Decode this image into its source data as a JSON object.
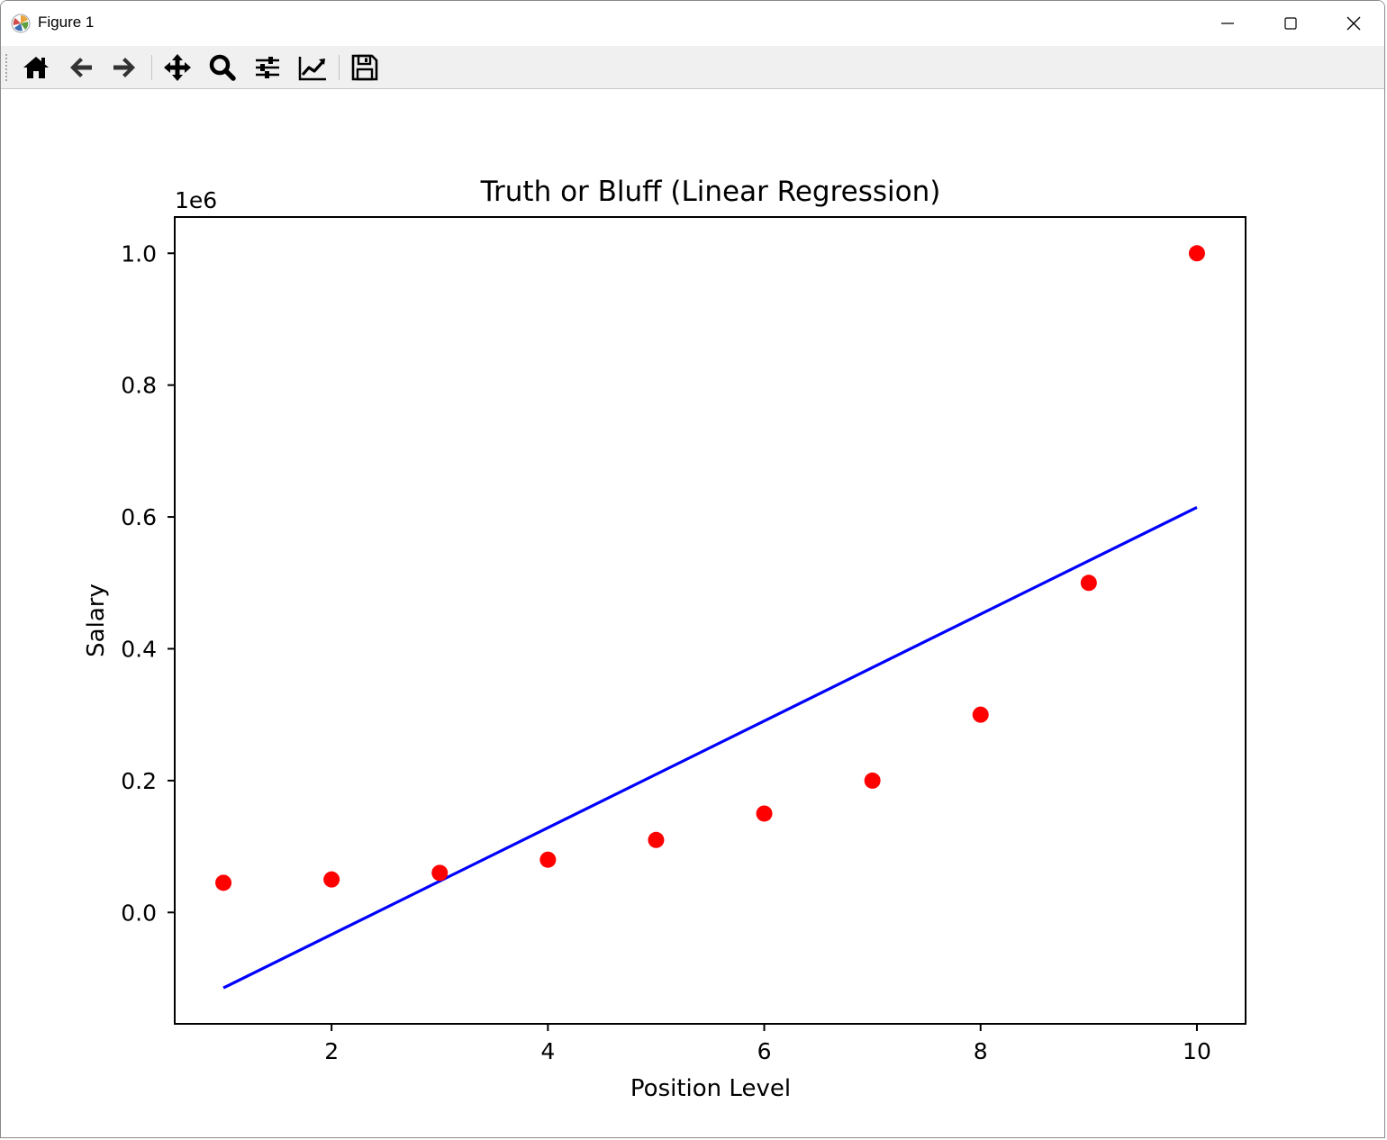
{
  "window": {
    "title": "Figure 1",
    "icon": "matplotlib-logo-icon",
    "controls": [
      "minimize-icon",
      "maximize-icon",
      "close-icon"
    ]
  },
  "toolbar": {
    "buttons": [
      {
        "name": "home",
        "icon": "home-icon"
      },
      {
        "name": "back",
        "icon": "arrow-left-icon"
      },
      {
        "name": "forward",
        "icon": "arrow-right-icon"
      },
      {
        "name": "pan",
        "icon": "move-arrows-icon"
      },
      {
        "name": "zoom",
        "icon": "magnifier-icon"
      },
      {
        "name": "configure-subplots",
        "icon": "sliders-icon"
      },
      {
        "name": "edit-axis",
        "icon": "line-chart-icon"
      },
      {
        "name": "save",
        "icon": "floppy-disk-icon"
      }
    ]
  },
  "chart_data": {
    "type": "scatter",
    "title": "Truth or Bluff (Linear Regression)",
    "xlabel": "Position Level",
    "ylabel": "Salary",
    "y_offset_label": "1e6",
    "xlim": [
      0.55,
      10.45
    ],
    "ylim": [
      -0.169,
      1.055
    ],
    "x_ticks": [
      2,
      4,
      6,
      8,
      10
    ],
    "x_tick_labels": [
      "2",
      "4",
      "6",
      "8",
      "10"
    ],
    "y_ticks": [
      0.0,
      0.2,
      0.4,
      0.6,
      0.8,
      1.0
    ],
    "y_tick_labels": [
      "0.0",
      "0.2",
      "0.4",
      "0.6",
      "0.8",
      "1.0"
    ],
    "grid": false,
    "series": [
      {
        "kind": "scatter",
        "color": "#ff0000",
        "x": [
          1,
          2,
          3,
          4,
          5,
          6,
          7,
          8,
          9,
          10
        ],
        "y": [
          0.045,
          0.05,
          0.06,
          0.08,
          0.11,
          0.15,
          0.2,
          0.3,
          0.5,
          1.0
        ]
      },
      {
        "kind": "line",
        "color": "#0000ff",
        "x": [
          1,
          10
        ],
        "y": [
          -0.1145,
          0.6145
        ]
      }
    ]
  }
}
